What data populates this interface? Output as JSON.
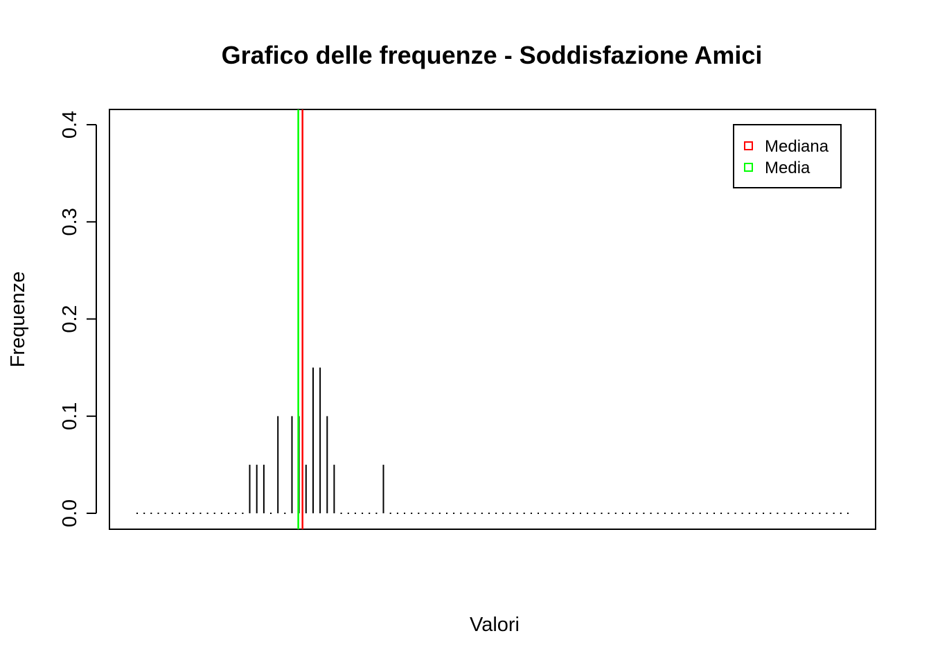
{
  "chart_data": {
    "type": "bar",
    "title": "Grafico delle frequenze - Soddisfazione Amici",
    "xlabel": "Valori",
    "ylabel": "Frequenze",
    "ylim": [
      0,
      0.4
    ],
    "yticks": [
      "0.0",
      "0.1",
      "0.2",
      "0.3",
      "0.4"
    ],
    "xlim": [
      0,
      101
    ],
    "x": [
      16,
      17,
      18,
      20,
      22,
      23,
      24,
      25,
      26,
      27,
      28,
      35
    ],
    "values": [
      0.05,
      0.05,
      0.05,
      0.1,
      0.1,
      0.1,
      0.05,
      0.15,
      0.15,
      0.1,
      0.05,
      0.05
    ],
    "zero_points": {
      "from": 0,
      "to": 101,
      "step": 1
    },
    "reference_lines": [
      {
        "name": "Mediana",
        "x": 23.5,
        "color": "#ff0000"
      },
      {
        "name": "Media",
        "x": 22.9,
        "color": "#00ff00"
      }
    ],
    "legend": {
      "position": "top-right",
      "entries": [
        {
          "label": "Mediana",
          "color": "#ff0000"
        },
        {
          "label": "Media",
          "color": "#00ff00"
        }
      ]
    },
    "grid": false
  }
}
